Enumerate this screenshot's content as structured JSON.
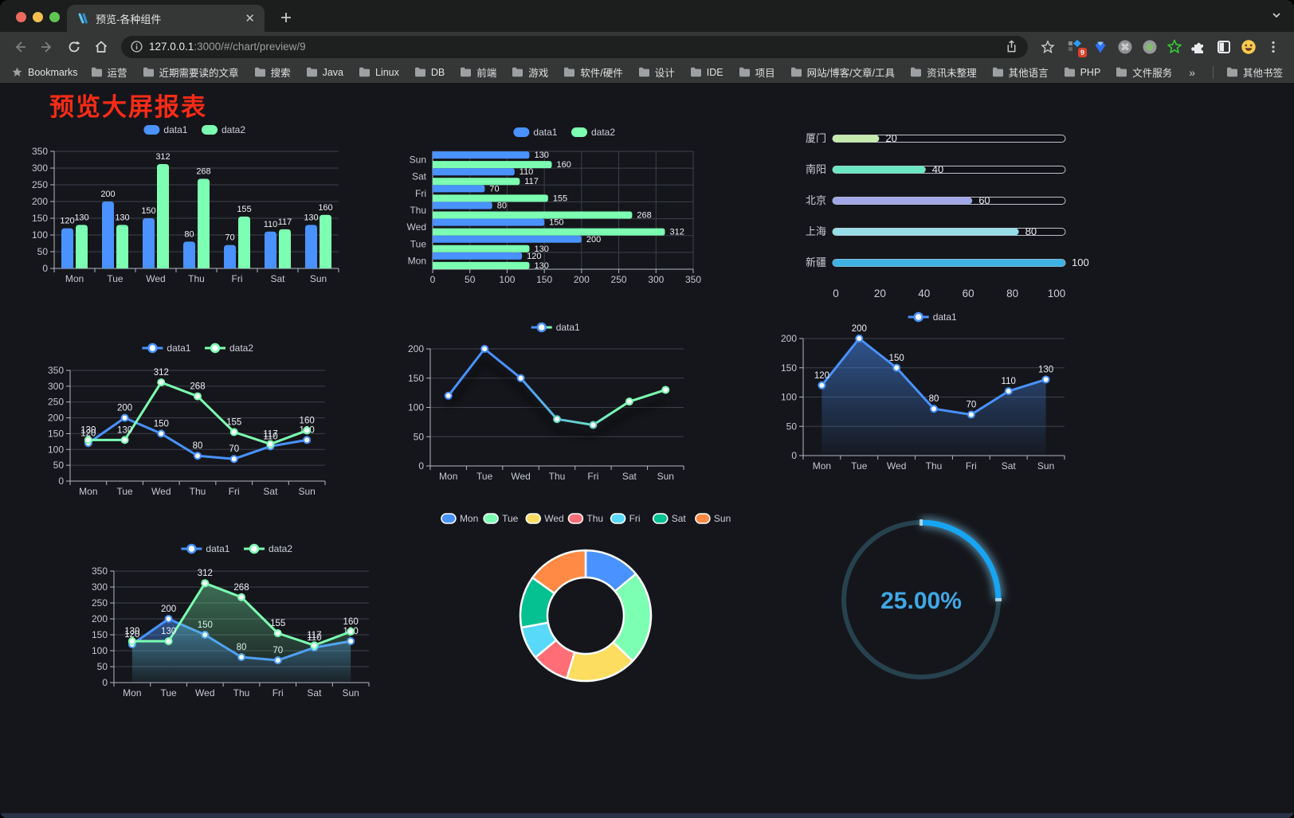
{
  "browser": {
    "tab": {
      "title": "预览-各种组件"
    },
    "url": {
      "host": "127.0.0.1",
      "rest": ":3000/#/chart/preview/9"
    },
    "bookmarks_label": "Bookmarks",
    "bookmarks": [
      "运营",
      "近期需要读的文章",
      "搜索",
      "Java",
      "Linux",
      "DB",
      "前端",
      "游戏",
      "软件/硬件",
      "设计",
      "IDE",
      "项目",
      "网站/博客/文章/工具",
      "资讯未整理",
      "其他语言",
      "PHP",
      "文件服务器"
    ],
    "bookmarks_overflow": "»",
    "other_bookmarks": "其他书签",
    "extension_badge": "9"
  },
  "page": {
    "title": "预览大屏报表",
    "title_color": "#fb2b16"
  },
  "chart_data": [
    {
      "id": "bar-grouped",
      "type": "bar",
      "categories": [
        "Mon",
        "Tue",
        "Wed",
        "Thu",
        "Fri",
        "Sat",
        "Sun"
      ],
      "series": [
        {
          "name": "data1",
          "color": "#4992ff",
          "values": [
            120,
            200,
            150,
            80,
            70,
            110,
            130
          ]
        },
        {
          "name": "data2",
          "color": "#7cffb2",
          "values": [
            130,
            130,
            312,
            268,
            155,
            117,
            160
          ]
        }
      ],
      "yticks": [
        0,
        50,
        100,
        150,
        200,
        250,
        300,
        350
      ],
      "ylim": [
        0,
        350
      ],
      "labels": true,
      "legend_position": "top",
      "grid": true
    },
    {
      "id": "bar-horizontal",
      "type": "hbar",
      "categories": [
        "Mon",
        "Tue",
        "Wed",
        "Thu",
        "Fri",
        "Sat",
        "Sun"
      ],
      "series": [
        {
          "name": "data1",
          "color": "#4992ff",
          "values": [
            120,
            200,
            150,
            80,
            70,
            110,
            130
          ]
        },
        {
          "name": "data2",
          "color": "#7cffb2",
          "values": [
            130,
            130,
            312,
            268,
            155,
            117,
            160
          ]
        }
      ],
      "xticks": [
        0,
        50,
        100,
        150,
        200,
        250,
        300,
        350
      ],
      "xlim": [
        0,
        350
      ],
      "labels": true,
      "legend_position": "top",
      "grid": true
    },
    {
      "id": "progress-bars",
      "type": "progress",
      "max": 100,
      "xticks": [
        0,
        20,
        40,
        60,
        80,
        100
      ],
      "rows": [
        {
          "label": "厦门",
          "value": 20,
          "color": "#c4ebad"
        },
        {
          "label": "南阳",
          "value": 40,
          "color": "#6be6c1"
        },
        {
          "label": "北京",
          "value": 60,
          "color": "#a0a7e6"
        },
        {
          "label": "上海",
          "value": 80,
          "color": "#96dee8"
        },
        {
          "label": "新疆",
          "value": 100,
          "color": "#3fb1e3"
        }
      ]
    },
    {
      "id": "line-two-series",
      "type": "line",
      "categories": [
        "Mon",
        "Tue",
        "Wed",
        "Thu",
        "Fri",
        "Sat",
        "Sun"
      ],
      "series": [
        {
          "name": "data1",
          "color": "#4992ff",
          "values": [
            120,
            200,
            150,
            80,
            70,
            110,
            130
          ]
        },
        {
          "name": "data2",
          "color": "#7cffb2",
          "values": [
            130,
            130,
            312,
            268,
            155,
            117,
            160
          ]
        }
      ],
      "yticks": [
        0,
        50,
        100,
        150,
        200,
        250,
        300,
        350
      ],
      "ylim": [
        0,
        350
      ],
      "labels": true,
      "legend_position": "top",
      "grid": true
    },
    {
      "id": "line-gradient",
      "type": "line",
      "categories": [
        "Mon",
        "Tue",
        "Wed",
        "Thu",
        "Fri",
        "Sat",
        "Sun"
      ],
      "series": [
        {
          "name": "data1",
          "color": "#4992ff",
          "gradient": [
            "#4992ff",
            "#7cffb2"
          ],
          "values": [
            120,
            200,
            150,
            80,
            70,
            110,
            130
          ]
        }
      ],
      "yticks": [
        0,
        50,
        100,
        150,
        200
      ],
      "ylim": [
        0,
        200
      ],
      "labels": false,
      "shadow": true,
      "legend_position": "top",
      "grid": true
    },
    {
      "id": "line-area",
      "type": "line",
      "categories": [
        "Mon",
        "Tue",
        "Wed",
        "Thu",
        "Fri",
        "Sat",
        "Sun"
      ],
      "series": [
        {
          "name": "data1",
          "color": "#4992ff",
          "area": true,
          "values": [
            120,
            200,
            150,
            80,
            70,
            110,
            130
          ]
        }
      ],
      "yticks": [
        0,
        50,
        100,
        150,
        200
      ],
      "ylim": [
        0,
        200
      ],
      "labels": true,
      "legend_position": "top",
      "grid": true
    },
    {
      "id": "line-area-two",
      "type": "line",
      "categories": [
        "Mon",
        "Tue",
        "Wed",
        "Thu",
        "Fri",
        "Sat",
        "Sun"
      ],
      "series": [
        {
          "name": "data1",
          "color": "#4992ff",
          "area": true,
          "values": [
            120,
            200,
            150,
            80,
            70,
            110,
            130
          ]
        },
        {
          "name": "data2",
          "color": "#7cffb2",
          "area": true,
          "values": [
            130,
            130,
            312,
            268,
            155,
            117,
            160
          ]
        }
      ],
      "yticks": [
        0,
        50,
        100,
        150,
        200,
        250,
        300,
        350
      ],
      "ylim": [
        0,
        350
      ],
      "labels": true,
      "legend_position": "top",
      "grid": true
    },
    {
      "id": "donut",
      "type": "donut",
      "items": [
        {
          "label": "Mon",
          "value": 120,
          "color": "#4992ff"
        },
        {
          "label": "Tue",
          "value": 200,
          "color": "#7cffb2"
        },
        {
          "label": "Wed",
          "value": 150,
          "color": "#fddd60"
        },
        {
          "label": "Thu",
          "value": 80,
          "color": "#ff6e76"
        },
        {
          "label": "Fri",
          "value": 70,
          "color": "#58d9f9"
        },
        {
          "label": "Sat",
          "value": 110,
          "color": "#05c091"
        },
        {
          "label": "Sun",
          "value": 130,
          "color": "#ff8a45"
        }
      ],
      "legend_position": "top"
    },
    {
      "id": "gauge",
      "type": "gauge",
      "value": 25,
      "display": "25.00%",
      "color": "#17a5f3",
      "track_color": "#27424e",
      "text_color": "#3fa8e6"
    }
  ]
}
